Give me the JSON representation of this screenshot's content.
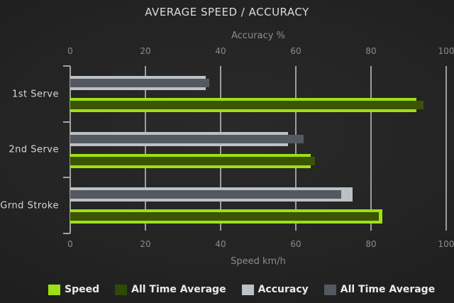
{
  "title": "AVERAGE SPEED / ACCURACY",
  "chart_data": {
    "type": "bar",
    "orientation": "horizontal",
    "title": "AVERAGE SPEED / ACCURACY",
    "categories": [
      "1st Serve",
      "2nd Serve",
      "Grnd Stroke"
    ],
    "series": [
      {
        "name": "Speed",
        "color": "#9ee016",
        "values": [
          92,
          64,
          83
        ],
        "axis": "bottom"
      },
      {
        "name": "All Time Average",
        "color": "#3c5405",
        "values": [
          94,
          65,
          82
        ],
        "axis": "bottom",
        "overlay_of": "Speed"
      },
      {
        "name": "Accuracy",
        "color": "#bcc1c5",
        "values": [
          36,
          58,
          75
        ],
        "axis": "top"
      },
      {
        "name": "All Time Average",
        "color": "#545860",
        "values": [
          37,
          62,
          72
        ],
        "axis": "top",
        "overlay_of": "Accuracy"
      }
    ],
    "top_axis": {
      "label": "Accuracy %",
      "ticks": [
        0,
        20,
        40,
        60,
        80,
        100
      ],
      "range": [
        0,
        100
      ]
    },
    "bottom_axis": {
      "label": "Speed km/h",
      "ticks": [
        0,
        20,
        40,
        60,
        80,
        100
      ],
      "range": [
        0,
        100
      ]
    },
    "legend": [
      {
        "label": "Speed",
        "color": "#9ee016"
      },
      {
        "label": "All Time Average",
        "color": "#2f4a06"
      },
      {
        "label": "Accuracy",
        "color": "#bcc1c5"
      },
      {
        "label": "All Time Average",
        "color": "#545860"
      }
    ],
    "grid": true,
    "legend_position": "bottom",
    "colors": {
      "background_center": "#2a2a2a",
      "background_edge": "#171717",
      "gridline": "#9d9d9d",
      "axis_text": "#8c8c8c",
      "title_text": "#dcdcdc",
      "category_text": "#d6d6d6"
    }
  }
}
